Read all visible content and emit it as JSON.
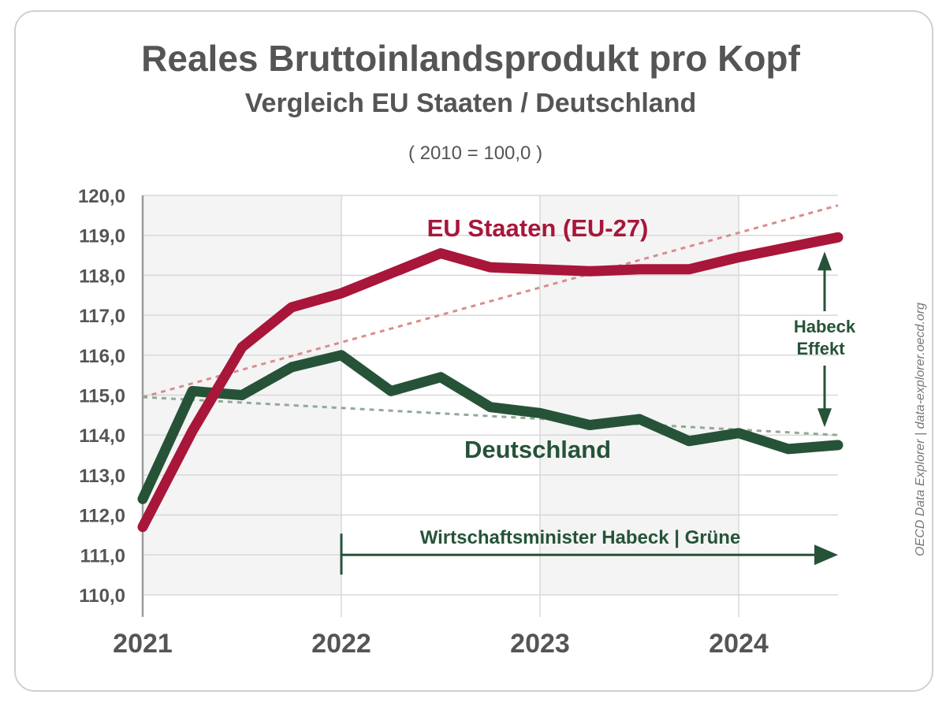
{
  "chart_data": {
    "type": "line",
    "title": "Reales Bruttoinlandsprodukt pro Kopf",
    "subtitle": "Vergleich EU Staaten / Deutschland",
    "note": "( 2010 = 100,0 )",
    "ylim": [
      110,
      120
    ],
    "yticks": [
      "110,0",
      "111,0",
      "112,0",
      "113,0",
      "114,0",
      "115,0",
      "116,0",
      "117,0",
      "118,0",
      "119,0",
      "120,0"
    ],
    "xlim": [
      2021,
      2024.5
    ],
    "xticks": [
      "2021",
      "2022",
      "2023",
      "2024"
    ],
    "series": [
      {
        "name": "EU Staaten (EU-27)",
        "color": "#a8163a",
        "x": [
          2021,
          2021.25,
          2021.5,
          2021.75,
          2022,
          2022.25,
          2022.5,
          2022.75,
          2023,
          2023.25,
          2023.5,
          2023.75,
          2024,
          2024.25,
          2024.5
        ],
        "values": [
          111.7,
          114.1,
          116.2,
          117.2,
          117.55,
          118.05,
          118.55,
          118.2,
          118.15,
          118.1,
          118.15,
          118.15,
          118.45,
          118.7,
          118.95
        ]
      },
      {
        "name": "Deutschland",
        "color": "#265338",
        "x": [
          2021,
          2021.25,
          2021.5,
          2021.75,
          2022,
          2022.25,
          2022.5,
          2022.75,
          2023,
          2023.25,
          2023.5,
          2023.75,
          2024,
          2024.25,
          2024.5
        ],
        "values": [
          112.4,
          115.1,
          115.0,
          115.7,
          116.0,
          115.1,
          115.45,
          114.7,
          114.55,
          114.25,
          114.4,
          113.85,
          114.05,
          113.65,
          113.75
        ]
      }
    ],
    "trendlines": [
      {
        "name": "EU trend",
        "color": "#d98d8d",
        "x": [
          2021,
          2024.5
        ],
        "values": [
          114.95,
          119.75
        ]
      },
      {
        "name": "Deutschland trend",
        "color": "#93a895",
        "x": [
          2021,
          2024.5
        ],
        "values": [
          114.95,
          114.0
        ]
      }
    ],
    "shaded_years": [
      [
        2021,
        2022
      ],
      [
        2023,
        2024
      ]
    ],
    "annotations": {
      "eu_label": "EU Staaten (EU-27)",
      "de_label": "Deutschland",
      "effect_line1": "Habeck",
      "effect_line2": "Effekt",
      "period_label": "Wirtschaftsminister Habeck | Grüne",
      "period_start": 2022,
      "period_end": 2024.5
    },
    "source": "OECD Data Explorer | data-explorer.oecd.org"
  },
  "colors": {
    "eu": "#a8163a",
    "de": "#265338",
    "text": "#555555",
    "shade": "#f4f4f4",
    "grid": "#d8d8d8"
  }
}
